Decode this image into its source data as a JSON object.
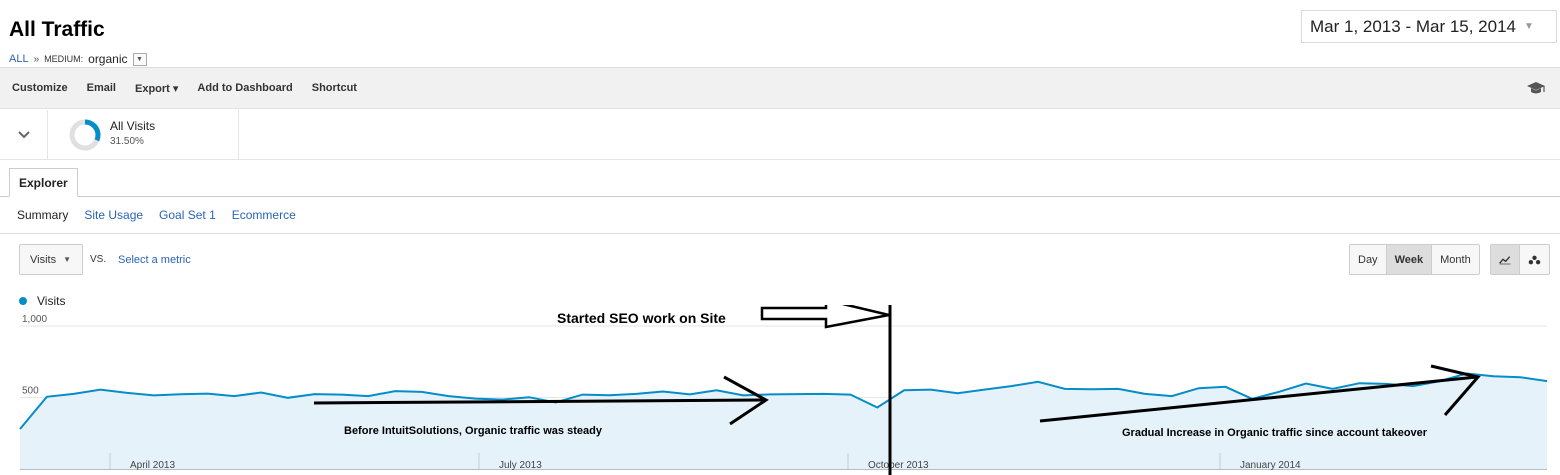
{
  "header": {
    "title": "All Traffic",
    "breadcrumb": {
      "all": "ALL",
      "separator": "»",
      "dimension": "MEDIUM:",
      "value": "organic"
    },
    "date_range": "Mar 1, 2013 - Mar 15, 2014"
  },
  "toolbar": {
    "customize": "Customize",
    "email": "Email",
    "export": "Export ▾",
    "add_to_dashboard": "Add to Dashboard",
    "shortcut": "Shortcut"
  },
  "segment": {
    "name": "All Visits",
    "percent": "31.50%",
    "fraction": 0.315
  },
  "tabs": {
    "explorer": "Explorer"
  },
  "subtabs": [
    "Summary",
    "Site Usage",
    "Goal Set 1",
    "Ecommerce"
  ],
  "controls": {
    "metric": "Visits",
    "vs": "VS.",
    "select_metric": "Select a metric",
    "granularity": [
      "Day",
      "Week",
      "Month"
    ],
    "selected_granularity": "Week"
  },
  "colors": {
    "line": "#058dc7",
    "fill": "#e5f2fa",
    "link": "#2a64b7",
    "annotation": "#000000"
  },
  "chart_data": {
    "type": "area",
    "series": [
      {
        "name": "Visits",
        "values": [
          280,
          505,
          525,
          555,
          532,
          515,
          523,
          527,
          510,
          535,
          498,
          524,
          520,
          510,
          545,
          539,
          510,
          492,
          485,
          502,
          465,
          520,
          516,
          525,
          542,
          522,
          550,
          515,
          522,
          524,
          525,
          520,
          430,
          550,
          555,
          530,
          555,
          580,
          610,
          560,
          557,
          560,
          525,
          510,
          565,
          575,
          490,
          540,
          598,
          560,
          600,
          595,
          580,
          615,
          668,
          648,
          642,
          615
        ]
      }
    ],
    "x_labels": [
      "April 2013",
      "July 2013",
      "October 2013",
      "January 2014"
    ],
    "y_ticks": [
      500,
      1000
    ],
    "ylim": [
      0,
      1000
    ],
    "grid": true,
    "legend": "top-left",
    "annotations": {
      "seo_start": "Started SEO work on Site",
      "before": "Before IntuitSolutions, Organic traffic was steady",
      "after": "Gradual Increase in Organic traffic since account takeover"
    }
  }
}
